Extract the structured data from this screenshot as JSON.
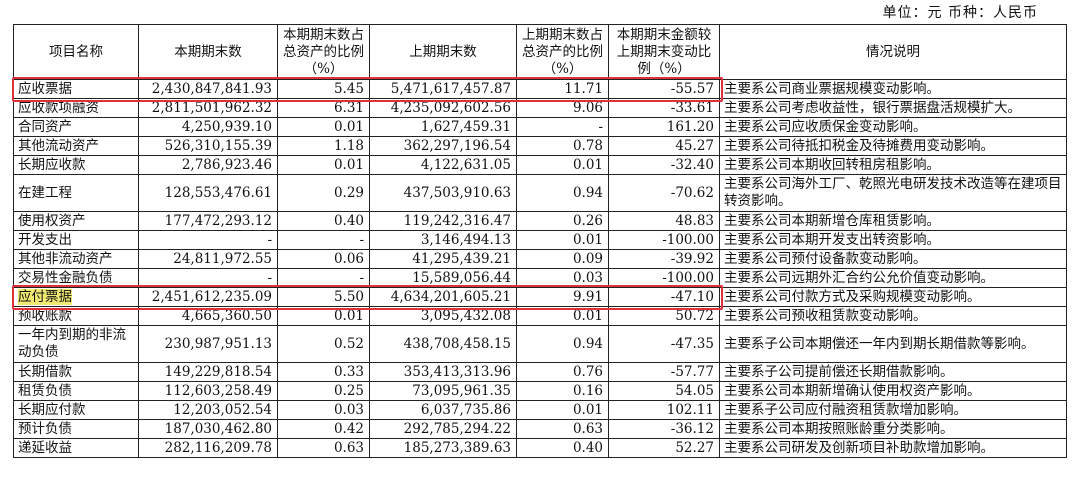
{
  "unit_line": "单位：元   币种：人民币",
  "headers": [
    "项目名称",
    "本期期末数",
    "本期期末数占总资产的比例（%）",
    "上期期末数",
    "上期期末数占总资产的比例（%）",
    "本期期末金额较上期期末变动比例（%）",
    "情况说明"
  ],
  "rows": [
    {
      "name": "应收票据",
      "cur": "2,430,847,841.93",
      "cur_pct": "5.45",
      "prev": "5,471,617,457.87",
      "prev_pct": "11.71",
      "chg": "-55.57",
      "note": "主要系公司商业票据规模变动影响。"
    },
    {
      "name": "应收款项融资",
      "cur": "2,811,501,962.32",
      "cur_pct": "6.31",
      "prev": "4,235,092,602.56",
      "prev_pct": "9.06",
      "chg": "-33.61",
      "note": "主要系公司考虑收益性，银行票据盘活规模扩大。"
    },
    {
      "name": "合同资产",
      "cur": "4,250,939.10",
      "cur_pct": "0.01",
      "prev": "1,627,459.31",
      "prev_pct": "-",
      "chg": "161.20",
      "note": "主要系公司应收质保金变动影响。"
    },
    {
      "name": "其他流动资产",
      "cur": "526,310,155.39",
      "cur_pct": "1.18",
      "prev": "362,297,196.54",
      "prev_pct": "0.78",
      "chg": "45.27",
      "note": "主要系公司待抵扣税金及待摊费用变动影响。"
    },
    {
      "name": "长期应收款",
      "cur": "2,786,923.46",
      "cur_pct": "0.01",
      "prev": "4,122,631.05",
      "prev_pct": "0.01",
      "chg": "-32.40",
      "note": "主要系公司本期收回转租房租影响。"
    },
    {
      "name": "在建工程",
      "cur": "128,553,476.61",
      "cur_pct": "0.29",
      "prev": "437,503,910.63",
      "prev_pct": "0.94",
      "chg": "-70.62",
      "note": "主要系公司海外工厂、乾照光电研发技术改造等在建项目转资影响。"
    },
    {
      "name": "使用权资产",
      "cur": "177,472,293.12",
      "cur_pct": "0.40",
      "prev": "119,242,316.47",
      "prev_pct": "0.26",
      "chg": "48.83",
      "note": "主要系公司本期新增仓库租赁影响。"
    },
    {
      "name": "开发支出",
      "cur": "-",
      "cur_pct": "-",
      "prev": "3,146,494.13",
      "prev_pct": "0.01",
      "chg": "-100.00",
      "note": "主要系公司本期开发支出转资影响。"
    },
    {
      "name": "其他非流动资产",
      "cur": "24,811,972.55",
      "cur_pct": "0.06",
      "prev": "41,295,439.21",
      "prev_pct": "0.09",
      "chg": "-39.92",
      "note": "主要系公司预付设备款变动影响。"
    },
    {
      "name": "交易性金融负债",
      "cur": "-",
      "cur_pct": "-",
      "prev": "15,589,056.44",
      "prev_pct": "0.03",
      "chg": "-100.00",
      "note": "主要系公司远期外汇合约公允价值变动影响。"
    },
    {
      "name": "应付票据",
      "cur": "2,451,612,235.09",
      "cur_pct": "5.50",
      "prev": "4,634,201,605.21",
      "prev_pct": "9.91",
      "chg": "-47.10",
      "note": "主要系公司付款方式及采购规模变动影响。"
    },
    {
      "name": "预收账款",
      "cur": "4,665,360.50",
      "cur_pct": "0.01",
      "prev": "3,095,432.08",
      "prev_pct": "0.01",
      "chg": "50.72",
      "note": "主要系公司预收租赁款变动影响。"
    },
    {
      "name": "一年内到期的非流动负债",
      "cur": "230,987,951.13",
      "cur_pct": "0.52",
      "prev": "438,708,458.15",
      "prev_pct": "0.94",
      "chg": "-47.35",
      "note": "主要系子公司本期偿还一年内到期长期借款等影响。"
    },
    {
      "name": "长期借款",
      "cur": "149,229,818.54",
      "cur_pct": "0.33",
      "prev": "353,413,313.96",
      "prev_pct": "0.76",
      "chg": "-57.77",
      "note": "主要系子公司提前偿还长期借款影响。"
    },
    {
      "name": "租赁负债",
      "cur": "112,603,258.49",
      "cur_pct": "0.25",
      "prev": "73,095,961.35",
      "prev_pct": "0.16",
      "chg": "54.05",
      "note": "主要系公司本期新增确认使用权资产影响。"
    },
    {
      "name": "长期应付款",
      "cur": "12,203,052.54",
      "cur_pct": "0.03",
      "prev": "6,037,735.86",
      "prev_pct": "0.01",
      "chg": "102.11",
      "note": "主要系子公司应付融资租赁款增加影响。"
    },
    {
      "name": "预计负债",
      "cur": "187,030,462.80",
      "cur_pct": "0.42",
      "prev": "292,785,294.22",
      "prev_pct": "0.63",
      "chg": "-36.12",
      "note": "主要系公司本期按照账龄重分类影响。"
    },
    {
      "name": "递延收益",
      "cur": "282,116,209.78",
      "cur_pct": "0.63",
      "prev": "185,273,389.63",
      "prev_pct": "0.40",
      "chg": "52.27",
      "note": "主要系公司研发及创新项目补助款增加影响。"
    }
  ],
  "highlight_color": "#e0303a"
}
